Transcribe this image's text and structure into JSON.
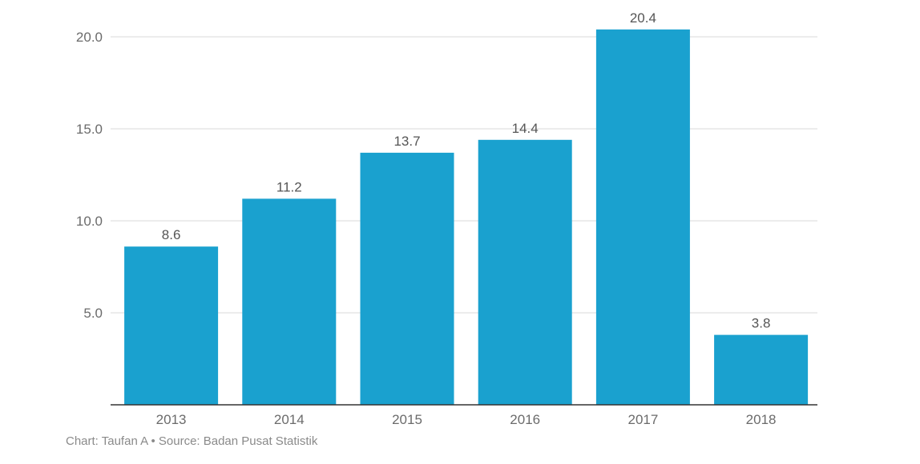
{
  "chart_data": {
    "type": "bar",
    "categories": [
      "2013",
      "2014",
      "2015",
      "2016",
      "2017",
      "2018"
    ],
    "values": [
      8.6,
      11.2,
      13.7,
      14.4,
      20.4,
      3.8
    ],
    "value_labels": [
      "8.6",
      "11.2",
      "13.7",
      "14.4",
      "20.4",
      "3.8"
    ],
    "y_ticks": [
      5.0,
      10.0,
      15.0,
      20.0
    ],
    "y_tick_labels": [
      "5.0",
      "10.0",
      "15.0",
      "20.0"
    ],
    "ylim": [
      0,
      20
    ],
    "grid": true,
    "legend": "none",
    "title": "",
    "xlabel": "",
    "ylabel": "",
    "colors": {
      "bar": "#1aa1cf",
      "grid": "#d9d9d9",
      "axis": "#333333"
    }
  },
  "footer": {
    "credit": "Chart: Taufan A • Source: Badan Pusat Statistik"
  }
}
